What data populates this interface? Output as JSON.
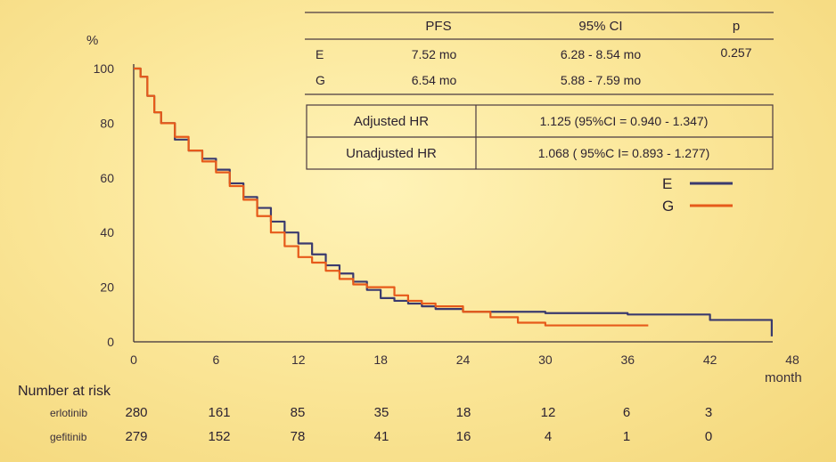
{
  "chart_data": {
    "type": "line",
    "title": "",
    "ylabel": "%",
    "xlabel": "month",
    "xlim": [
      0,
      48
    ],
    "ylim": [
      0,
      100
    ],
    "x_ticks": [
      0,
      6,
      12,
      18,
      24,
      30,
      36,
      42,
      48
    ],
    "y_ticks": [
      0,
      20,
      40,
      60,
      80,
      100
    ],
    "legend": [
      {
        "label": "E",
        "color": "#3a3a6e"
      },
      {
        "label": "G",
        "color": "#e65a1a"
      }
    ],
    "series": [
      {
        "name": "E",
        "color": "#3a3a6e",
        "points": [
          [
            0,
            100
          ],
          [
            0.5,
            97
          ],
          [
            1,
            90
          ],
          [
            1.5,
            84
          ],
          [
            2,
            80
          ],
          [
            3,
            74
          ],
          [
            4,
            70
          ],
          [
            5,
            67
          ],
          [
            6,
            63
          ],
          [
            7,
            58
          ],
          [
            8,
            53
          ],
          [
            9,
            49
          ],
          [
            10,
            44
          ],
          [
            11,
            40
          ],
          [
            12,
            36
          ],
          [
            13,
            32
          ],
          [
            14,
            28
          ],
          [
            15,
            25
          ],
          [
            16,
            22
          ],
          [
            17,
            19
          ],
          [
            18,
            16
          ],
          [
            19,
            15
          ],
          [
            20,
            14
          ],
          [
            21,
            13
          ],
          [
            22,
            12
          ],
          [
            24,
            11
          ],
          [
            26,
            11
          ],
          [
            28,
            11
          ],
          [
            30,
            10.5
          ],
          [
            36,
            10
          ],
          [
            40,
            10
          ],
          [
            42,
            8
          ],
          [
            45,
            8
          ],
          [
            46.5,
            8
          ],
          [
            46.5,
            2
          ]
        ]
      },
      {
        "name": "G",
        "color": "#e65a1a",
        "points": [
          [
            0,
            100
          ],
          [
            0.5,
            97
          ],
          [
            1,
            90
          ],
          [
            1.5,
            84
          ],
          [
            2,
            80
          ],
          [
            3,
            75
          ],
          [
            4,
            70
          ],
          [
            5,
            66
          ],
          [
            6,
            62
          ],
          [
            7,
            57
          ],
          [
            8,
            52
          ],
          [
            9,
            46
          ],
          [
            10,
            40
          ],
          [
            11,
            35
          ],
          [
            12,
            31
          ],
          [
            13,
            29
          ],
          [
            14,
            26
          ],
          [
            15,
            23
          ],
          [
            16,
            21
          ],
          [
            17,
            20
          ],
          [
            18,
            20
          ],
          [
            19,
            17
          ],
          [
            20,
            15
          ],
          [
            21,
            14
          ],
          [
            22,
            13
          ],
          [
            24,
            11
          ],
          [
            26,
            9
          ],
          [
            28,
            7
          ],
          [
            30,
            6
          ],
          [
            32,
            6
          ],
          [
            34,
            6
          ],
          [
            36,
            6
          ],
          [
            37.5,
            6
          ]
        ]
      }
    ],
    "table": {
      "header": [
        "PFS",
        "95% CI",
        "p"
      ],
      "rows": [
        {
          "arm": "E",
          "pfs": "7.52 mo",
          "ci": "6.28 - 8.54 mo",
          "p": "0.257"
        },
        {
          "arm": "G",
          "pfs": "6.54 mo",
          "ci": "5.88 - 7.59 mo",
          "p": ""
        }
      ],
      "hr": [
        {
          "label": "Adjusted HR",
          "value": "1.125 (95%CI = 0.940 - 1.347)"
        },
        {
          "label": "Unadjusted HR",
          "value": "1.068 ( 95%C I= 0.893 - 1.277)"
        }
      ]
    },
    "risk_table": {
      "title": "Number at risk",
      "rows": [
        {
          "name": "erlotinib",
          "values": [
            280,
            161,
            85,
            35,
            18,
            12,
            6,
            3
          ]
        },
        {
          "name": "gefitinib",
          "values": [
            279,
            152,
            78,
            41,
            16,
            4,
            1,
            0
          ]
        }
      ]
    }
  }
}
